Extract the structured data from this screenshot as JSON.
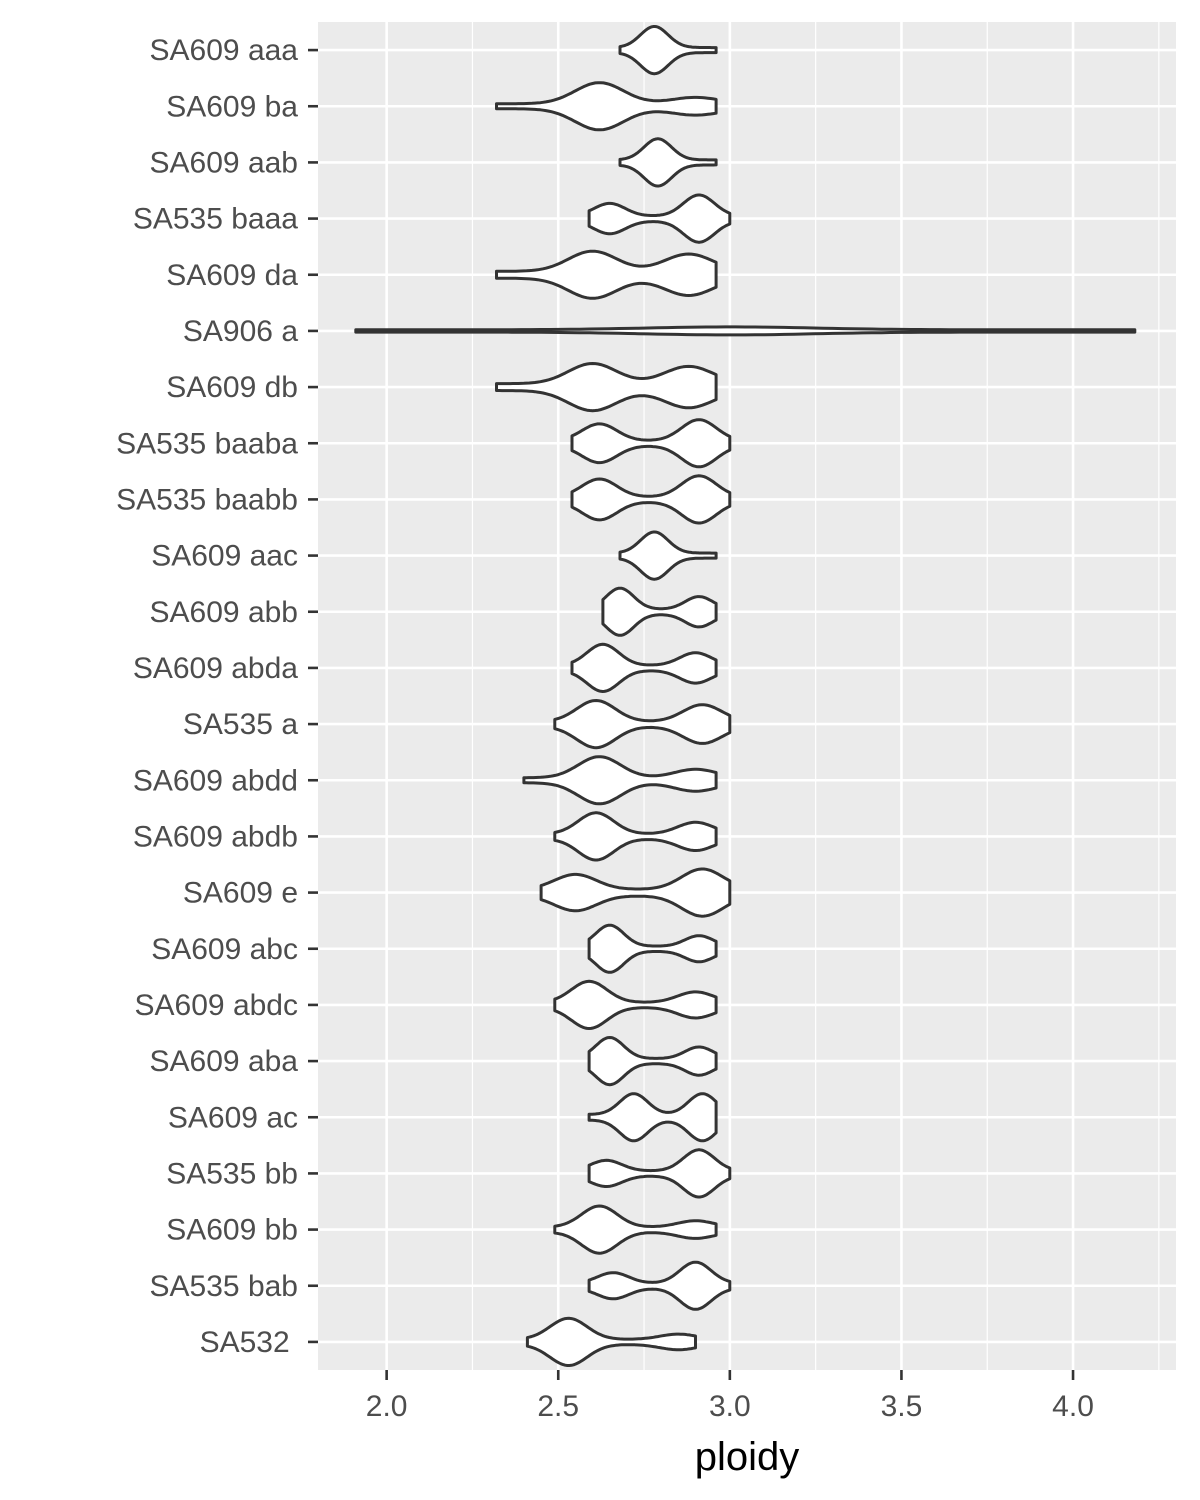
{
  "chart_data": {
    "type": "violin",
    "xlabel": "ploidy",
    "ylabel": "",
    "xlim": [
      1.8,
      4.3
    ],
    "x_ticks": [
      "2.0",
      "2.5",
      "3.0",
      "3.5",
      "4.0"
    ],
    "x_tick_values": [
      2.0,
      2.5,
      3.0,
      3.5,
      4.0
    ],
    "grid": true,
    "panel_background": "#ebebeb",
    "grid_color": "#ffffff",
    "violin_stroke": "#333333",
    "violin_fill": "#ffffff",
    "categories": [
      {
        "label": "SA609 aaa",
        "range": [
          2.68,
          2.96
        ],
        "peaks": [
          [
            2.78,
            1.0
          ]
        ]
      },
      {
        "label": "SA609 ba",
        "range": [
          2.32,
          2.96
        ],
        "peaks": [
          [
            2.62,
            1.0
          ],
          [
            2.9,
            0.3
          ]
        ]
      },
      {
        "label": "SA609 aab",
        "range": [
          2.68,
          2.96
        ],
        "peaks": [
          [
            2.79,
            1.0
          ]
        ]
      },
      {
        "label": "SA535 baaa",
        "range": [
          2.59,
          3.0
        ],
        "peaks": [
          [
            2.91,
            1.0
          ],
          [
            2.65,
            0.6
          ]
        ]
      },
      {
        "label": "SA609 da",
        "range": [
          2.32,
          2.96
        ],
        "peaks": [
          [
            2.6,
            0.7
          ],
          [
            2.88,
            0.6
          ]
        ]
      },
      {
        "label": "SA906 a",
        "range": [
          1.91,
          4.18
        ],
        "peaks": [
          [
            3.0,
            0.3
          ]
        ]
      },
      {
        "label": "SA609 db",
        "range": [
          2.32,
          2.96
        ],
        "peaks": [
          [
            2.6,
            0.7
          ],
          [
            2.88,
            0.6
          ]
        ]
      },
      {
        "label": "SA535 baaba",
        "range": [
          2.54,
          3.0
        ],
        "peaks": [
          [
            2.62,
            0.8
          ],
          [
            2.91,
            1.0
          ]
        ]
      },
      {
        "label": "SA535 baabb",
        "range": [
          2.54,
          3.0
        ],
        "peaks": [
          [
            2.62,
            0.85
          ],
          [
            2.91,
            1.0
          ]
        ]
      },
      {
        "label": "SA609 aac",
        "range": [
          2.68,
          2.96
        ],
        "peaks": [
          [
            2.78,
            1.0
          ]
        ]
      },
      {
        "label": "SA609 abb",
        "range": [
          2.63,
          2.96
        ],
        "peaks": [
          [
            2.68,
            1.0
          ],
          [
            2.91,
            0.6
          ]
        ]
      },
      {
        "label": "SA609 abda",
        "range": [
          2.54,
          2.96
        ],
        "peaks": [
          [
            2.63,
            1.0
          ],
          [
            2.9,
            0.6
          ]
        ]
      },
      {
        "label": "SA535 a",
        "range": [
          2.49,
          3.0
        ],
        "peaks": [
          [
            2.61,
            1.0
          ],
          [
            2.92,
            0.8
          ]
        ]
      },
      {
        "label": "SA609 abdd",
        "range": [
          2.4,
          2.96
        ],
        "peaks": [
          [
            2.62,
            1.0
          ],
          [
            2.9,
            0.4
          ]
        ]
      },
      {
        "label": "SA609 abdb",
        "range": [
          2.49,
          2.96
        ],
        "peaks": [
          [
            2.61,
            1.0
          ],
          [
            2.9,
            0.55
          ]
        ]
      },
      {
        "label": "SA609 e",
        "range": [
          2.45,
          3.0
        ],
        "peaks": [
          [
            2.55,
            0.55
          ],
          [
            2.92,
            0.75
          ]
        ]
      },
      {
        "label": "SA609 abc",
        "range": [
          2.59,
          2.96
        ],
        "peaks": [
          [
            2.65,
            1.0
          ],
          [
            2.91,
            0.5
          ]
        ]
      },
      {
        "label": "SA609 abdc",
        "range": [
          2.49,
          2.96
        ],
        "peaks": [
          [
            2.59,
            1.0
          ],
          [
            2.9,
            0.5
          ]
        ]
      },
      {
        "label": "SA609 aba",
        "range": [
          2.59,
          2.96
        ],
        "peaks": [
          [
            2.65,
            1.0
          ],
          [
            2.91,
            0.55
          ]
        ]
      },
      {
        "label": "SA609 ac",
        "range": [
          2.59,
          2.96
        ],
        "peaks": [
          [
            2.72,
            0.9
          ],
          [
            2.92,
            0.9
          ]
        ]
      },
      {
        "label": "SA535 bb",
        "range": [
          2.59,
          3.0
        ],
        "peaks": [
          [
            2.91,
            1.0
          ],
          [
            2.64,
            0.5
          ]
        ]
      },
      {
        "label": "SA609 bb",
        "range": [
          2.49,
          2.96
        ],
        "peaks": [
          [
            2.62,
            1.0
          ],
          [
            2.9,
            0.3
          ]
        ]
      },
      {
        "label": "SA535 bab",
        "range": [
          2.59,
          3.0
        ],
        "peaks": [
          [
            2.9,
            1.0
          ],
          [
            2.66,
            0.5
          ]
        ]
      },
      {
        "label": "SA532 ",
        "range": [
          2.41,
          2.9
        ],
        "peaks": [
          [
            2.53,
            1.0
          ],
          [
            2.85,
            0.25
          ]
        ]
      }
    ]
  }
}
